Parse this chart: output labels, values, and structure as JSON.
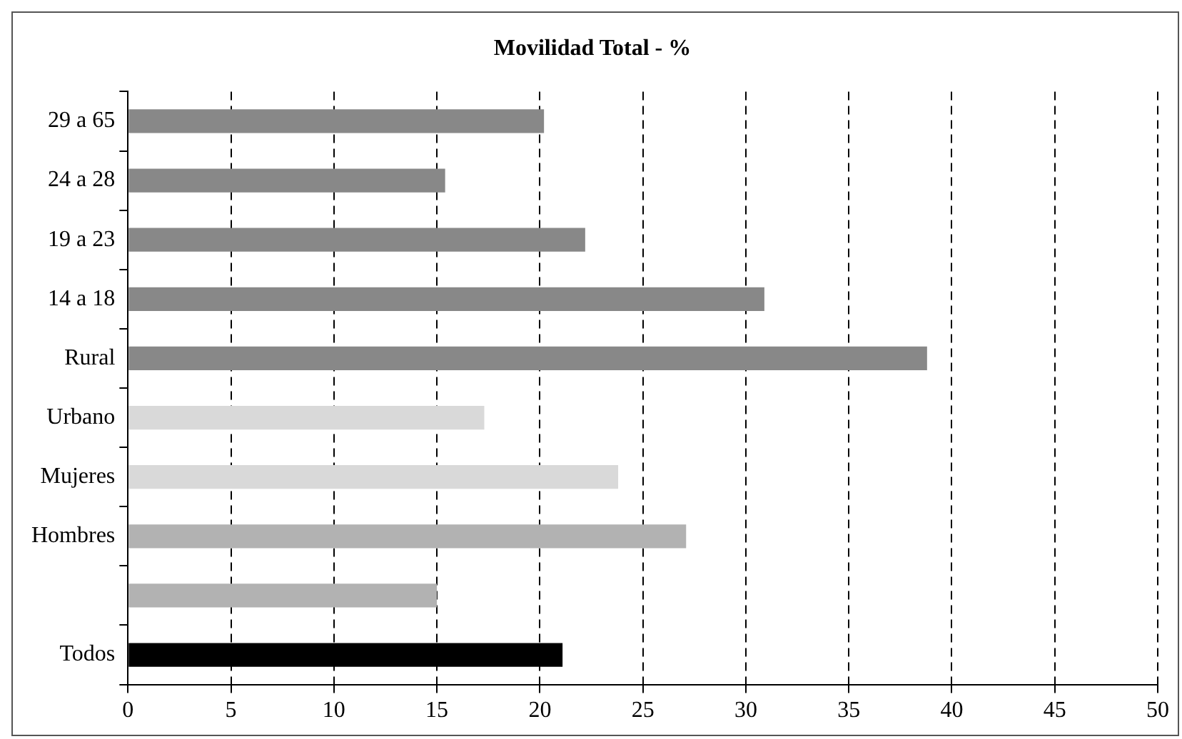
{
  "chart_data": {
    "type": "bar",
    "orientation": "horizontal",
    "title": "Movilidad Total - %",
    "categories": [
      "29 a 65",
      "24 a 28",
      "19 a 23",
      "14 a 18",
      "Rural",
      "Urbano",
      "Mujeres",
      "Hombres",
      null,
      "Todos"
    ],
    "values": [
      20.2,
      15.4,
      22.2,
      30.9,
      38.8,
      17.3,
      23.8,
      27.1,
      15.0,
      21.1
    ],
    "colors": [
      "#888888",
      "#888888",
      "#888888",
      "#888888",
      "#888888",
      "#d9d9d9",
      "#d9d9d9",
      "#b2b2b2",
      "#b2b2b2",
      "#000000"
    ],
    "xlim": [
      0,
      50
    ],
    "xticks": [
      0,
      5,
      10,
      15,
      20,
      25,
      30,
      35,
      40,
      45,
      50
    ],
    "grid": "x",
    "legend": false,
    "line_style": "dashed"
  }
}
